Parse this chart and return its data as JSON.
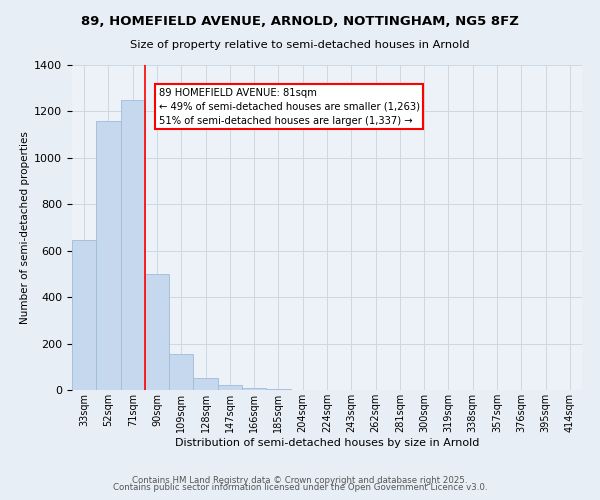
{
  "title_line1": "89, HOMEFIELD AVENUE, ARNOLD, NOTTINGHAM, NG5 8FZ",
  "title_line2": "Size of property relative to semi-detached houses in Arnold",
  "xlabel": "Distribution of semi-detached houses by size in Arnold",
  "ylabel": "Number of semi-detached properties",
  "bar_labels": [
    "33sqm",
    "52sqm",
    "71sqm",
    "90sqm",
    "109sqm",
    "128sqm",
    "147sqm",
    "166sqm",
    "185sqm",
    "204sqm",
    "224sqm",
    "243sqm",
    "262sqm",
    "281sqm",
    "300sqm",
    "319sqm",
    "338sqm",
    "357sqm",
    "376sqm",
    "395sqm",
    "414sqm"
  ],
  "bar_values": [
    645,
    1160,
    1250,
    500,
    155,
    50,
    22,
    10,
    5,
    2,
    1,
    0,
    0,
    0,
    0,
    0,
    0,
    0,
    0,
    0,
    0
  ],
  "bar_color": "#c5d8ee",
  "bar_edge_color": "#a0bcd8",
  "vline_x": 2.5,
  "annotation_text": "89 HOMEFIELD AVENUE: 81sqm\n← 49% of semi-detached houses are smaller (1,263)\n51% of semi-detached houses are larger (1,337) →",
  "annotation_box_color": "white",
  "annotation_box_edge": "red",
  "footer_line1": "Contains HM Land Registry data © Crown copyright and database right 2025.",
  "footer_line2": "Contains public sector information licensed under the Open Government Licence v3.0.",
  "ylim": [
    0,
    1400
  ],
  "bg_color": "#e8eef5",
  "plot_bg_color": "#edf2f8",
  "grid_color": "#cdd8e5"
}
